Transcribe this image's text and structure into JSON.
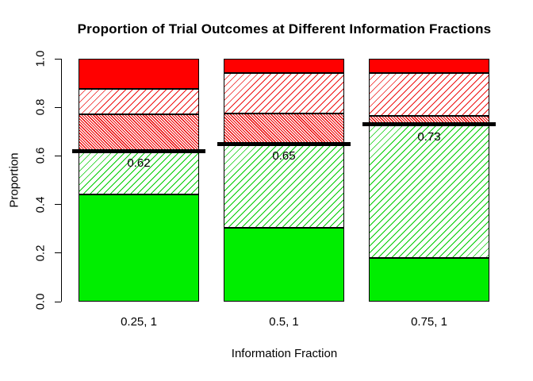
{
  "chart_data": {
    "type": "bar",
    "stacked": true,
    "title": "Proportion of Trial Outcomes at Different Information Fractions",
    "xlabel": "Information Fraction",
    "ylabel": "Proportion",
    "ylim": [
      0,
      1
    ],
    "grid": false,
    "legend": "none",
    "y_ticks": [
      "0.0",
      "0.2",
      "0.4",
      "0.6",
      "0.8",
      "1.0"
    ],
    "categories": [
      "0.25, 1",
      "0.5, 1",
      "0.75, 1"
    ],
    "series": [
      {
        "name": "solid-green-segment",
        "style": "solid-green",
        "values": [
          0.44,
          0.305,
          0.18
        ]
      },
      {
        "name": "green-hatched-segment",
        "style": "hatch-green",
        "values": [
          0.18,
          0.345,
          0.55
        ]
      },
      {
        "name": "dense-red-hatched-segment",
        "style": "hatch-red-dense",
        "values": [
          0.15,
          0.125,
          0.035
        ]
      },
      {
        "name": "red-hatched-segment",
        "style": "hatch-red",
        "values": [
          0.105,
          0.165,
          0.175
        ]
      },
      {
        "name": "solid-red-segment",
        "style": "solid-red",
        "values": [
          0.125,
          0.06,
          0.06
        ]
      }
    ],
    "threshold_lines": {
      "values": [
        0.62,
        0.65,
        0.73
      ],
      "labels": [
        "0.62",
        "0.65",
        "0.73"
      ]
    },
    "colors": {
      "green": "#00ee00",
      "red": "#ff0000",
      "threshold": "#000000"
    }
  }
}
